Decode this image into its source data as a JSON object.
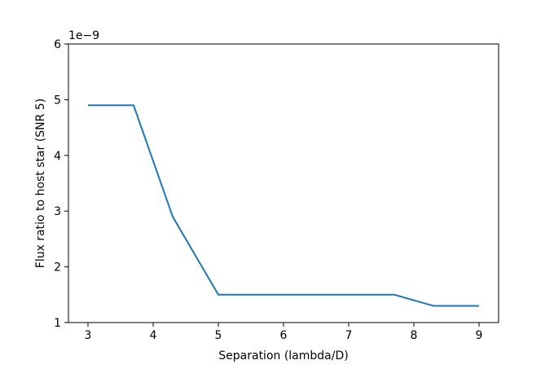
{
  "chart_data": {
    "type": "line",
    "xlabel": "Separation (lambda/D)",
    "ylabel": "Flux ratio to host star (SNR 5)",
    "y_offset_label": "1e−9",
    "x": [
      3,
      3.7,
      4.3,
      5,
      7.7,
      8.3,
      9
    ],
    "series": [
      {
        "color": "#1f77b4",
        "values": [
          4.9,
          4.9,
          2.9,
          1.5,
          1.5,
          1.3,
          1.3
        ]
      }
    ],
    "xlim": [
      2.7,
      9.3
    ],
    "ylim": [
      1,
      6
    ],
    "xticks": [
      3,
      4,
      5,
      6,
      7,
      8,
      9
    ],
    "yticks": [
      1,
      2,
      3,
      4,
      5,
      6
    ]
  }
}
